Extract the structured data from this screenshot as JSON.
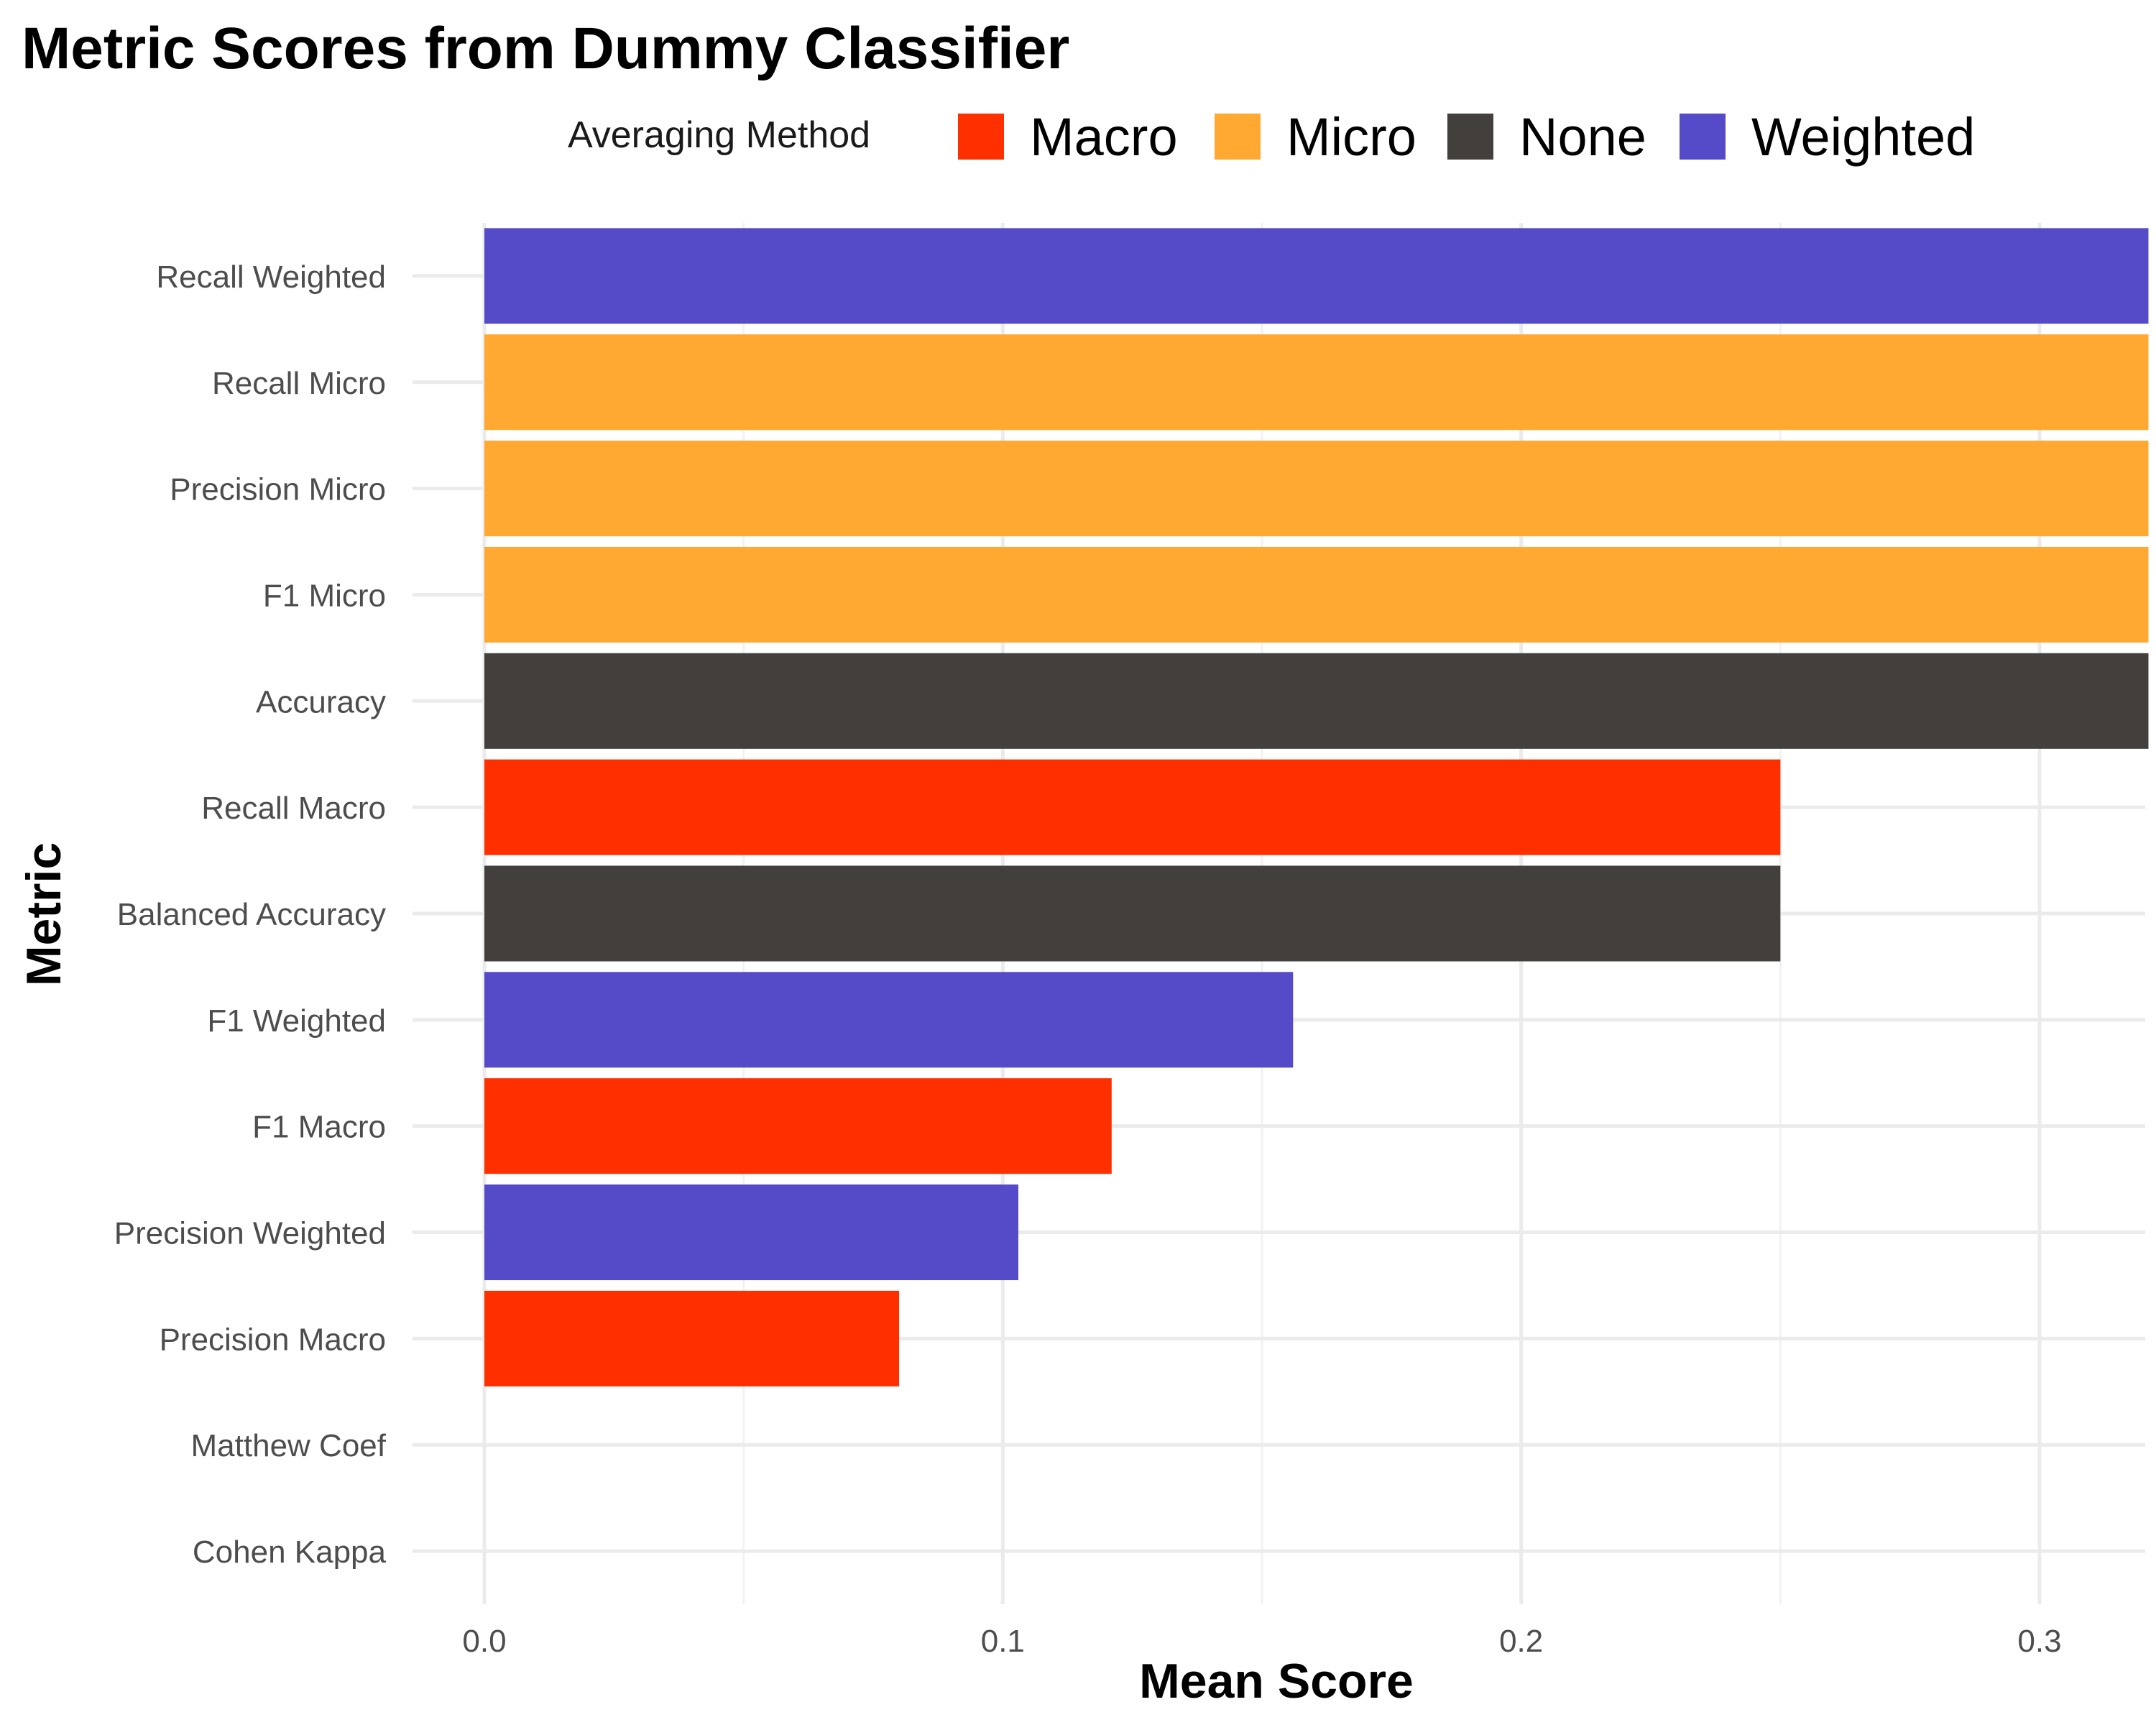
{
  "chart_data": {
    "type": "bar",
    "orientation": "horizontal",
    "title": "Metric Scores from Dummy Classifier",
    "xlabel": "Mean Score",
    "ylabel": "Metric",
    "xlim": [
      -0.05,
      0.34
    ],
    "xticks": [
      0.0,
      0.1,
      0.2,
      0.3
    ],
    "xtick_labels": [
      "0.0",
      "0.1",
      "0.2",
      "0.3"
    ],
    "grid": true,
    "legend": {
      "title": "Averaging Method",
      "placement": "top",
      "entries": [
        {
          "name": "Macro",
          "color": "#ff3000"
        },
        {
          "name": "Micro",
          "color": "#ffa933"
        },
        {
          "name": "None",
          "color": "#433f3c"
        },
        {
          "name": "Weighted",
          "color": "#554ac8"
        }
      ]
    },
    "categories": [
      "Recall Weighted",
      "Recall Micro",
      "Precision Micro",
      "F1 Micro",
      "Accuracy",
      "Recall Macro",
      "Balanced Accuracy",
      "F1 Weighted",
      "F1 Macro",
      "Precision Weighted",
      "Precision Macro",
      "Matthew Coef",
      "Cohen Kappa"
    ],
    "values": [
      0.321,
      0.321,
      0.321,
      0.321,
      0.321,
      0.25,
      0.25,
      0.156,
      0.121,
      0.103,
      0.08,
      0.0,
      0.0
    ],
    "groups": [
      "Weighted",
      "Micro",
      "Micro",
      "Micro",
      "None",
      "Macro",
      "None",
      "Weighted",
      "Macro",
      "Weighted",
      "Macro",
      "None",
      "None"
    ]
  }
}
